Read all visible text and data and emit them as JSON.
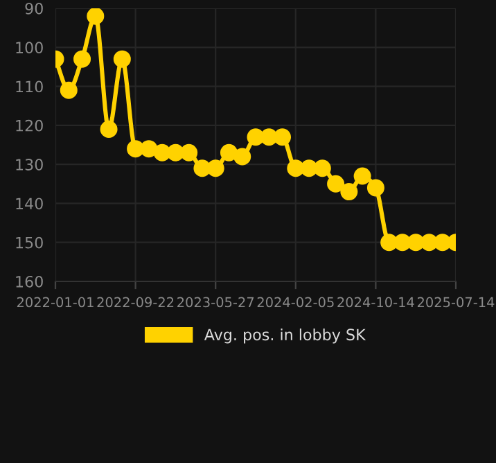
{
  "chart_data": {
    "type": "line",
    "categories": [
      "2022-01-01",
      null,
      null,
      null,
      null,
      null,
      "2022-09-22",
      null,
      null,
      null,
      null,
      null,
      "2023-05-27",
      null,
      null,
      null,
      null,
      null,
      "2024-02-05",
      null,
      null,
      null,
      null,
      null,
      "2024-10-14",
      null,
      null,
      null,
      null,
      null,
      "2025-07-14"
    ],
    "series": [
      {
        "name": "Avg. pos. in lobby SK",
        "color": "#ffd200",
        "values": [
          103,
          111,
          103,
          92,
          121,
          103,
          126,
          126,
          127,
          127,
          127,
          131,
          131,
          127,
          128,
          123,
          123,
          123,
          131,
          131,
          131,
          135,
          137,
          133,
          136,
          150,
          150,
          150,
          150,
          150,
          150
        ]
      }
    ],
    "ylim": [
      160,
      90
    ],
    "yticks": [
      90,
      100,
      110,
      120,
      130,
      140,
      150,
      160
    ],
    "grid": true,
    "legend": "bottom",
    "marker": "circle",
    "line_style": "solid"
  }
}
